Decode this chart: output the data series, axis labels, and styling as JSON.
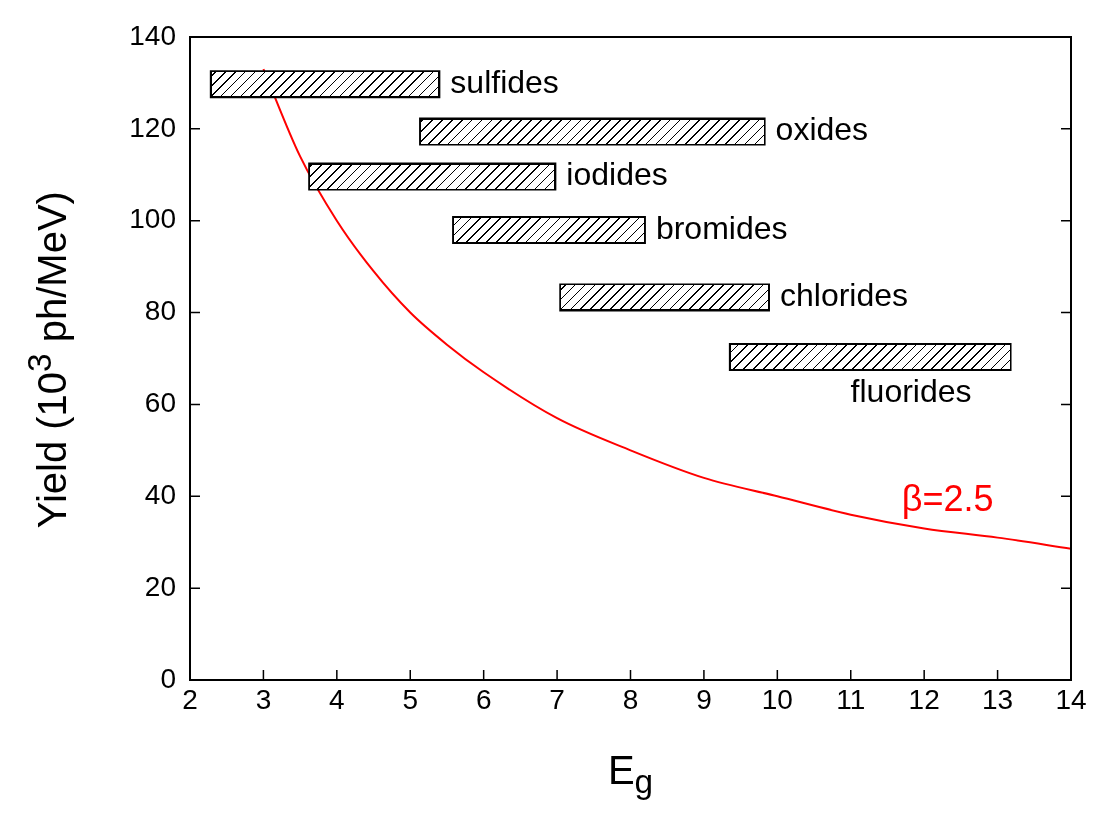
{
  "chart_data": {
    "type": "line",
    "xlabel": "E$_{g}$",
    "ylabel": "Yield (10$^{3}$ ph/MeV)",
    "xlim": [
      2,
      14
    ],
    "xticks": [
      2,
      3,
      4,
      5,
      6,
      7,
      8,
      9,
      10,
      11,
      12,
      13,
      14
    ],
    "ylim": [
      0,
      140
    ],
    "yticks": [
      0,
      20,
      40,
      60,
      80,
      100,
      120,
      140
    ],
    "grid": false,
    "legend": false,
    "marker": "none",
    "annotations": [
      {
        "text": "sulfides",
        "x": 5.41,
        "y": 129.7
      },
      {
        "text": "oxides",
        "x": 9.84,
        "y": 119.4
      },
      {
        "text": "iodides",
        "x": 6.99,
        "y": 109.6
      },
      {
        "text": "bromides",
        "x": 8.21,
        "y": 98
      },
      {
        "text": "chlorides",
        "x": 9.9,
        "y": 83.3
      },
      {
        "text": "fluorides",
        "x": 13.19,
        "y": 70.3
      }
    ],
    "series": [
      {
        "color": "#000000",
        "x": [
          2.27,
          5.41
        ],
        "values": [
          129.7,
          129.7
        ]
      },
      {
        "color": "#000000",
        "x": [
          5.12,
          9.84
        ],
        "values": [
          119.4,
          119.4
        ]
      },
      {
        "color": "#000000",
        "x": [
          3.61,
          6.99
        ],
        "values": [
          109.6,
          109.6
        ]
      },
      {
        "color": "#000000",
        "x": [
          5.57,
          8.21
        ],
        "values": [
          98,
          98
        ]
      },
      {
        "color": "#000000",
        "x": [
          7.03,
          9.9
        ],
        "values": [
          83.3,
          83.3
        ]
      },
      {
        "color": "#000000",
        "x": [
          9.34,
          13.19
        ],
        "values": [
          70.3,
          70.3
        ]
      },
      {
        "name": "β=2.5",
        "color": "#ff0000",
        "x": [
          3,
          3.5,
          4,
          4.5,
          5,
          5.5,
          6,
          7,
          8,
          9,
          10,
          11,
          12,
          13,
          14
        ],
        "values": [
          133,
          114,
          100,
          89,
          80,
          73,
          67,
          57,
          50,
          44,
          40,
          36,
          33,
          31,
          28.6
        ]
      }
    ]
  }
}
